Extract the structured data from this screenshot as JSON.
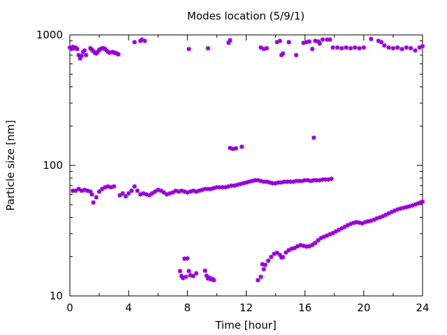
{
  "chart_data": {
    "type": "scatter",
    "title": "Modes location (5/9/1)",
    "xlabel": "Time [hour]",
    "ylabel": "Particle size [nm]",
    "xlim": [
      0,
      24
    ],
    "ylim": [
      10,
      1000
    ],
    "y_scale": "log",
    "grid": false,
    "legend": "none",
    "marker_color": "#9400d3",
    "x_ticks": [
      0,
      4,
      8,
      12,
      16,
      20,
      24
    ],
    "x_tick_labels": [
      "0",
      "4",
      "8",
      "12",
      "16",
      "20",
      "24"
    ],
    "y_ticks": [
      10,
      100,
      1000
    ],
    "y_tick_labels": [
      "10",
      "100",
      "1000"
    ],
    "series": [
      {
        "values": [
          {
            "x": 0.0,
            "y": 800
          },
          {
            "x": 0.1,
            "y": 780
          },
          {
            "x": 0.2,
            "y": 810
          },
          {
            "x": 0.3,
            "y": 790
          },
          {
            "x": 0.4,
            "y": 800
          },
          {
            "x": 0.5,
            "y": 780
          },
          {
            "x": 0.6,
            "y": 700
          },
          {
            "x": 0.7,
            "y": 660
          },
          {
            "x": 0.8,
            "y": 690
          },
          {
            "x": 0.9,
            "y": 740
          },
          {
            "x": 1.0,
            "y": 760
          },
          {
            "x": 1.1,
            "y": 700
          },
          {
            "x": 1.4,
            "y": 790
          },
          {
            "x": 1.5,
            "y": 770
          },
          {
            "x": 1.6,
            "y": 750
          },
          {
            "x": 1.7,
            "y": 730
          },
          {
            "x": 1.8,
            "y": 720
          },
          {
            "x": 1.9,
            "y": 740
          },
          {
            "x": 2.0,
            "y": 770
          },
          {
            "x": 2.1,
            "y": 780
          },
          {
            "x": 2.2,
            "y": 790
          },
          {
            "x": 2.3,
            "y": 790
          },
          {
            "x": 2.4,
            "y": 780
          },
          {
            "x": 2.5,
            "y": 760
          },
          {
            "x": 2.6,
            "y": 740
          },
          {
            "x": 2.7,
            "y": 730
          },
          {
            "x": 2.9,
            "y": 740
          },
          {
            "x": 3.0,
            "y": 730
          },
          {
            "x": 3.1,
            "y": 730
          },
          {
            "x": 3.2,
            "y": 720
          },
          {
            "x": 3.3,
            "y": 710
          },
          {
            "x": 4.4,
            "y": 880
          },
          {
            "x": 4.8,
            "y": 900
          },
          {
            "x": 4.9,
            "y": 920
          },
          {
            "x": 5.1,
            "y": 900
          },
          {
            "x": 8.1,
            "y": 780
          },
          {
            "x": 9.4,
            "y": 790
          },
          {
            "x": 10.8,
            "y": 870
          },
          {
            "x": 10.9,
            "y": 910
          },
          {
            "x": 13.0,
            "y": 800
          },
          {
            "x": 13.2,
            "y": 780
          },
          {
            "x": 13.4,
            "y": 790
          },
          {
            "x": 14.1,
            "y": 880
          },
          {
            "x": 14.3,
            "y": 900
          },
          {
            "x": 14.4,
            "y": 700
          },
          {
            "x": 14.5,
            "y": 720
          },
          {
            "x": 14.9,
            "y": 880
          },
          {
            "x": 15.4,
            "y": 700
          },
          {
            "x": 15.9,
            "y": 870
          },
          {
            "x": 16.1,
            "y": 880
          },
          {
            "x": 16.3,
            "y": 890
          },
          {
            "x": 16.5,
            "y": 780
          },
          {
            "x": 16.7,
            "y": 900
          },
          {
            "x": 16.9,
            "y": 890
          },
          {
            "x": 17.0,
            "y": 860
          },
          {
            "x": 17.2,
            "y": 920
          },
          {
            "x": 17.5,
            "y": 920
          },
          {
            "x": 17.7,
            "y": 920
          },
          {
            "x": 17.9,
            "y": 800
          },
          {
            "x": 18.2,
            "y": 800
          },
          {
            "x": 18.5,
            "y": 790
          },
          {
            "x": 18.8,
            "y": 800
          },
          {
            "x": 19.1,
            "y": 790
          },
          {
            "x": 19.4,
            "y": 800
          },
          {
            "x": 19.7,
            "y": 790
          },
          {
            "x": 20.0,
            "y": 800
          },
          {
            "x": 20.5,
            "y": 930
          },
          {
            "x": 21.0,
            "y": 900
          },
          {
            "x": 21.2,
            "y": 880
          },
          {
            "x": 21.4,
            "y": 830
          },
          {
            "x": 21.7,
            "y": 800
          },
          {
            "x": 22.0,
            "y": 790
          },
          {
            "x": 22.3,
            "y": 800
          },
          {
            "x": 22.6,
            "y": 780
          },
          {
            "x": 22.9,
            "y": 800
          },
          {
            "x": 23.2,
            "y": 790
          },
          {
            "x": 23.5,
            "y": 760
          },
          {
            "x": 23.8,
            "y": 800
          },
          {
            "x": 24.0,
            "y": 820
          },
          {
            "x": 0.2,
            "y": 64
          },
          {
            "x": 0.4,
            "y": 64
          },
          {
            "x": 0.6,
            "y": 66
          },
          {
            "x": 0.8,
            "y": 64
          },
          {
            "x": 1.0,
            "y": 65
          },
          {
            "x": 1.2,
            "y": 64
          },
          {
            "x": 1.4,
            "y": 63
          },
          {
            "x": 1.5,
            "y": 60
          },
          {
            "x": 1.6,
            "y": 52
          },
          {
            "x": 1.8,
            "y": 57
          },
          {
            "x": 2.0,
            "y": 63
          },
          {
            "x": 2.2,
            "y": 66
          },
          {
            "x": 2.4,
            "y": 68
          },
          {
            "x": 2.6,
            "y": 69
          },
          {
            "x": 2.8,
            "y": 68
          },
          {
            "x": 3.0,
            "y": 69
          },
          {
            "x": 3.4,
            "y": 59
          },
          {
            "x": 3.6,
            "y": 61
          },
          {
            "x": 3.8,
            "y": 58
          },
          {
            "x": 4.0,
            "y": 61
          },
          {
            "x": 4.2,
            "y": 64
          },
          {
            "x": 4.4,
            "y": 69
          },
          {
            "x": 4.6,
            "y": 64
          },
          {
            "x": 4.8,
            "y": 60
          },
          {
            "x": 5.0,
            "y": 61
          },
          {
            "x": 5.2,
            "y": 60
          },
          {
            "x": 5.4,
            "y": 59
          },
          {
            "x": 5.6,
            "y": 61
          },
          {
            "x": 5.8,
            "y": 63
          },
          {
            "x": 6.0,
            "y": 65
          },
          {
            "x": 6.2,
            "y": 64
          },
          {
            "x": 6.4,
            "y": 62
          },
          {
            "x": 6.6,
            "y": 60
          },
          {
            "x": 6.8,
            "y": 61
          },
          {
            "x": 7.0,
            "y": 62
          },
          {
            "x": 7.2,
            "y": 64
          },
          {
            "x": 7.4,
            "y": 63
          },
          {
            "x": 7.6,
            "y": 64
          },
          {
            "x": 7.8,
            "y": 63
          },
          {
            "x": 8.0,
            "y": 62
          },
          {
            "x": 8.2,
            "y": 63
          },
          {
            "x": 8.4,
            "y": 64
          },
          {
            "x": 8.6,
            "y": 63
          },
          {
            "x": 8.8,
            "y": 64
          },
          {
            "x": 9.0,
            "y": 65
          },
          {
            "x": 9.2,
            "y": 66
          },
          {
            "x": 9.4,
            "y": 66
          },
          {
            "x": 9.6,
            "y": 66
          },
          {
            "x": 9.8,
            "y": 67
          },
          {
            "x": 10.0,
            "y": 68
          },
          {
            "x": 10.2,
            "y": 68
          },
          {
            "x": 10.4,
            "y": 68
          },
          {
            "x": 10.6,
            "y": 68
          },
          {
            "x": 10.8,
            "y": 69
          },
          {
            "x": 11.0,
            "y": 70
          },
          {
            "x": 11.2,
            "y": 70
          },
          {
            "x": 11.4,
            "y": 71
          },
          {
            "x": 11.6,
            "y": 72
          },
          {
            "x": 11.8,
            "y": 73
          },
          {
            "x": 12.0,
            "y": 74
          },
          {
            "x": 12.2,
            "y": 75
          },
          {
            "x": 12.4,
            "y": 76
          },
          {
            "x": 12.6,
            "y": 77
          },
          {
            "x": 12.8,
            "y": 77
          },
          {
            "x": 13.0,
            "y": 76
          },
          {
            "x": 13.2,
            "y": 75
          },
          {
            "x": 13.4,
            "y": 75
          },
          {
            "x": 13.6,
            "y": 74
          },
          {
            "x": 13.8,
            "y": 73
          },
          {
            "x": 14.0,
            "y": 73
          },
          {
            "x": 14.2,
            "y": 74
          },
          {
            "x": 14.4,
            "y": 74
          },
          {
            "x": 14.6,
            "y": 75
          },
          {
            "x": 14.8,
            "y": 75
          },
          {
            "x": 15.0,
            "y": 75
          },
          {
            "x": 15.2,
            "y": 75
          },
          {
            "x": 15.4,
            "y": 76
          },
          {
            "x": 15.6,
            "y": 76
          },
          {
            "x": 15.8,
            "y": 76
          },
          {
            "x": 16.0,
            "y": 77
          },
          {
            "x": 16.2,
            "y": 77
          },
          {
            "x": 16.4,
            "y": 76
          },
          {
            "x": 16.6,
            "y": 77
          },
          {
            "x": 16.8,
            "y": 77
          },
          {
            "x": 17.0,
            "y": 77
          },
          {
            "x": 17.2,
            "y": 78
          },
          {
            "x": 17.4,
            "y": 78
          },
          {
            "x": 17.6,
            "y": 78
          },
          {
            "x": 17.8,
            "y": 79
          },
          {
            "x": 10.9,
            "y": 136
          },
          {
            "x": 11.1,
            "y": 134
          },
          {
            "x": 11.3,
            "y": 135
          },
          {
            "x": 11.7,
            "y": 139
          },
          {
            "x": 16.6,
            "y": 163
          },
          {
            "x": 7.5,
            "y": 15.5
          },
          {
            "x": 7.6,
            "y": 14.2
          },
          {
            "x": 7.7,
            "y": 13.7
          },
          {
            "x": 7.8,
            "y": 19.3
          },
          {
            "x": 7.9,
            "y": 14.0
          },
          {
            "x": 8.0,
            "y": 19.4
          },
          {
            "x": 8.1,
            "y": 15.5
          },
          {
            "x": 8.2,
            "y": 14.4
          },
          {
            "x": 8.4,
            "y": 14.2
          },
          {
            "x": 8.6,
            "y": 14.9
          },
          {
            "x": 9.2,
            "y": 15.6
          },
          {
            "x": 9.3,
            "y": 14.3
          },
          {
            "x": 9.4,
            "y": 13.6
          },
          {
            "x": 9.5,
            "y": 13.8
          },
          {
            "x": 9.6,
            "y": 13.4
          },
          {
            "x": 9.7,
            "y": 13.5
          },
          {
            "x": 9.8,
            "y": 13.2
          },
          {
            "x": 12.8,
            "y": 13.2
          },
          {
            "x": 13.0,
            "y": 14.0
          },
          {
            "x": 13.1,
            "y": 17.5
          },
          {
            "x": 13.2,
            "y": 16.0
          },
          {
            "x": 13.3,
            "y": 17.3
          },
          {
            "x": 13.5,
            "y": 18.6
          },
          {
            "x": 13.7,
            "y": 19.9
          },
          {
            "x": 13.9,
            "y": 21.0
          },
          {
            "x": 14.1,
            "y": 21.4
          },
          {
            "x": 14.3,
            "y": 20.6
          },
          {
            "x": 14.4,
            "y": 19.7
          },
          {
            "x": 14.5,
            "y": 19.8
          },
          {
            "x": 14.7,
            "y": 21.5
          },
          {
            "x": 14.9,
            "y": 22.4
          },
          {
            "x": 15.1,
            "y": 23.0
          },
          {
            "x": 15.3,
            "y": 23.3
          },
          {
            "x": 15.5,
            "y": 24.0
          },
          {
            "x": 15.7,
            "y": 24.5
          },
          {
            "x": 15.9,
            "y": 24.2
          },
          {
            "x": 16.1,
            "y": 23.9
          },
          {
            "x": 16.3,
            "y": 24.0
          },
          {
            "x": 16.5,
            "y": 24.6
          },
          {
            "x": 16.7,
            "y": 25.5
          },
          {
            "x": 16.9,
            "y": 26.7
          },
          {
            "x": 17.1,
            "y": 27.8
          },
          {
            "x": 17.3,
            "y": 28.4
          },
          {
            "x": 17.5,
            "y": 29.0
          },
          {
            "x": 17.7,
            "y": 29.7
          },
          {
            "x": 17.9,
            "y": 30.3
          },
          {
            "x": 18.1,
            "y": 31.2
          },
          {
            "x": 18.3,
            "y": 32.0
          },
          {
            "x": 18.5,
            "y": 32.9
          },
          {
            "x": 18.7,
            "y": 33.8
          },
          {
            "x": 18.9,
            "y": 34.8
          },
          {
            "x": 19.1,
            "y": 35.6
          },
          {
            "x": 19.3,
            "y": 36.3
          },
          {
            "x": 19.5,
            "y": 36.7
          },
          {
            "x": 19.7,
            "y": 36.4
          },
          {
            "x": 19.9,
            "y": 36.0
          },
          {
            "x": 20.1,
            "y": 36.8
          },
          {
            "x": 20.3,
            "y": 37.3
          },
          {
            "x": 20.5,
            "y": 37.7
          },
          {
            "x": 20.7,
            "y": 38.4
          },
          {
            "x": 20.9,
            "y": 39.3
          },
          {
            "x": 21.1,
            "y": 40.0
          },
          {
            "x": 21.3,
            "y": 40.8
          },
          {
            "x": 21.5,
            "y": 41.8
          },
          {
            "x": 21.7,
            "y": 42.9
          },
          {
            "x": 21.9,
            "y": 44.0
          },
          {
            "x": 22.1,
            "y": 45.0
          },
          {
            "x": 22.3,
            "y": 46.0
          },
          {
            "x": 22.5,
            "y": 46.7
          },
          {
            "x": 22.7,
            "y": 47.3
          },
          {
            "x": 22.9,
            "y": 47.9
          },
          {
            "x": 23.1,
            "y": 48.5
          },
          {
            "x": 23.3,
            "y": 49.3
          },
          {
            "x": 23.5,
            "y": 50.2
          },
          {
            "x": 23.7,
            "y": 51.2
          },
          {
            "x": 23.9,
            "y": 52.2
          },
          {
            "x": 24.0,
            "y": 52.8
          }
        ]
      }
    ]
  }
}
